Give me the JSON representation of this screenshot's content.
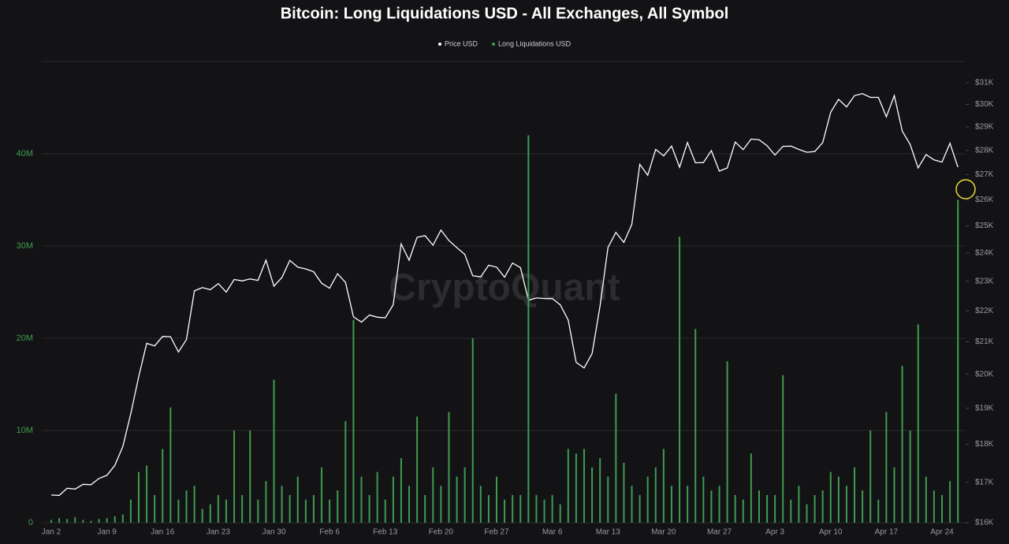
{
  "chart_data": {
    "type": "bar-line",
    "title": "Bitcoin: Long Liquidations USD - All Exchanges, All Symbol",
    "watermark": "CryptoQuant",
    "categories": [
      "Jan 2",
      null,
      null,
      null,
      null,
      null,
      null,
      "Jan 9",
      null,
      null,
      null,
      null,
      null,
      null,
      "Jan 16",
      null,
      null,
      null,
      null,
      null,
      null,
      "Jan 23",
      null,
      null,
      null,
      null,
      null,
      null,
      "Jan 30",
      null,
      null,
      null,
      null,
      null,
      null,
      "Feb 6",
      null,
      null,
      null,
      null,
      null,
      null,
      "Feb 13",
      null,
      null,
      null,
      null,
      null,
      null,
      "Feb 20",
      null,
      null,
      null,
      null,
      null,
      null,
      "Feb 27",
      null,
      null,
      null,
      null,
      null,
      null,
      "Mar 6",
      null,
      null,
      null,
      null,
      null,
      null,
      "Mar 13",
      null,
      null,
      null,
      null,
      null,
      null,
      "Mar 20",
      null,
      null,
      null,
      null,
      null,
      null,
      "Mar 27",
      null,
      null,
      null,
      null,
      null,
      null,
      "Apr 3",
      null,
      null,
      null,
      null,
      null,
      null,
      "Apr 10",
      null,
      null,
      null,
      null,
      null,
      null,
      "Apr 17",
      null,
      null,
      null,
      null,
      null,
      null,
      "Apr 24",
      null,
      null
    ],
    "series": [
      {
        "name": "Price USD",
        "color": "#ffffff",
        "axis": "y2",
        "kind": "line",
        "values": [
          16680,
          16670,
          16850,
          16830,
          16950,
          16940,
          17100,
          17180,
          17440,
          17940,
          18850,
          19930,
          20950,
          20870,
          21170,
          21160,
          20680,
          21070,
          22670,
          22780,
          22710,
          22920,
          22630,
          23060,
          23010,
          23080,
          23030,
          23740,
          22830,
          23130,
          23730,
          23490,
          23430,
          23330,
          22930,
          22760,
          23260,
          22960,
          21800,
          21630,
          21860,
          21790,
          21770,
          22200,
          24330,
          23740,
          24570,
          24630,
          24280,
          24840,
          24450,
          24190,
          23950,
          23190,
          23150,
          23560,
          23490,
          23140,
          23640,
          23470,
          22350,
          22430,
          22410,
          22410,
          22200,
          21700,
          20360,
          20190,
          20630,
          22160,
          24200,
          24750,
          24380,
          25050,
          27420,
          26970,
          28040,
          27770,
          28180,
          27300,
          28330,
          27480,
          27490,
          27990,
          27140,
          27270,
          28350,
          28030,
          28480,
          28450,
          28200,
          27800,
          28170,
          28180,
          28040,
          27920,
          27950,
          28330,
          29650,
          30230,
          29890,
          30400,
          30490,
          30320,
          30320,
          29450,
          30400,
          28820,
          28250,
          27270,
          27820,
          27600,
          27510,
          28300,
          27300
        ]
      },
      {
        "name": "Long Liquidations USD",
        "color": "#3e9b4f",
        "axis": "y",
        "kind": "bar",
        "values": [
          300000,
          500000,
          400000,
          600000,
          300000,
          200000,
          400000,
          500000,
          700000,
          900000,
          2500000,
          5500000,
          6200000,
          3000000,
          8000000,
          12500000,
          2500000,
          3500000,
          4000000,
          1500000,
          2000000,
          3000000,
          2500000,
          10000000,
          3000000,
          10000000,
          2500000,
          4500000,
          15500000,
          4000000,
          3000000,
          5000000,
          2500000,
          3000000,
          6000000,
          2500000,
          3500000,
          11000000,
          22000000,
          5000000,
          3000000,
          5500000,
          2500000,
          5000000,
          7000000,
          4000000,
          11500000,
          3000000,
          6000000,
          4000000,
          12000000,
          5000000,
          6000000,
          20000000,
          4000000,
          3000000,
          5000000,
          2500000,
          3000000,
          3000000,
          42000000,
          3000000,
          2500000,
          3000000,
          2000000,
          8000000,
          7500000,
          8000000,
          6000000,
          7000000,
          5000000,
          14000000,
          6500000,
          4000000,
          3000000,
          5000000,
          6000000,
          8000000,
          4000000,
          31000000,
          4000000,
          21000000,
          5000000,
          3500000,
          4000000,
          17500000,
          3000000,
          2500000,
          7500000,
          3500000,
          3000000,
          3000000,
          16000000,
          2500000,
          4000000,
          2000000,
          3000000,
          3500000,
          5500000,
          5000000,
          4000000,
          6000000,
          3500000,
          10000000,
          2500000,
          12000000,
          6000000,
          17000000,
          10000000,
          21500000,
          5000000,
          3500000,
          3000000,
          4500000,
          35000000
        ]
      }
    ],
    "ylim": [
      0,
      50000000
    ],
    "yticks": [
      {
        "value": 0,
        "label": "0"
      },
      {
        "value": 10000000,
        "label": "10M"
      },
      {
        "value": 20000000,
        "label": "20M"
      },
      {
        "value": 30000000,
        "label": "30M"
      },
      {
        "value": 40000000,
        "label": "40M"
      }
    ],
    "y2lim": [
      16000,
      32000
    ],
    "y2log": true,
    "y2ticks": [
      {
        "value": 16000,
        "label": "$16K"
      },
      {
        "value": 17000,
        "label": "$17K"
      },
      {
        "value": 18000,
        "label": "$18K"
      },
      {
        "value": 19000,
        "label": "$19K"
      },
      {
        "value": 20000,
        "label": "$20K"
      },
      {
        "value": 21000,
        "label": "$21K"
      },
      {
        "value": 22000,
        "label": "$22K"
      },
      {
        "value": 23000,
        "label": "$23K"
      },
      {
        "value": 24000,
        "label": "$24K"
      },
      {
        "value": 25000,
        "label": "$25K"
      },
      {
        "value": 26000,
        "label": "$26K"
      },
      {
        "value": 27000,
        "label": "$27K"
      },
      {
        "value": 28000,
        "label": "$28K"
      },
      {
        "value": 29000,
        "label": "$29K"
      },
      {
        "value": 30000,
        "label": "$30K"
      },
      {
        "value": 31000,
        "label": "$31K"
      }
    ],
    "grid": true
  }
}
